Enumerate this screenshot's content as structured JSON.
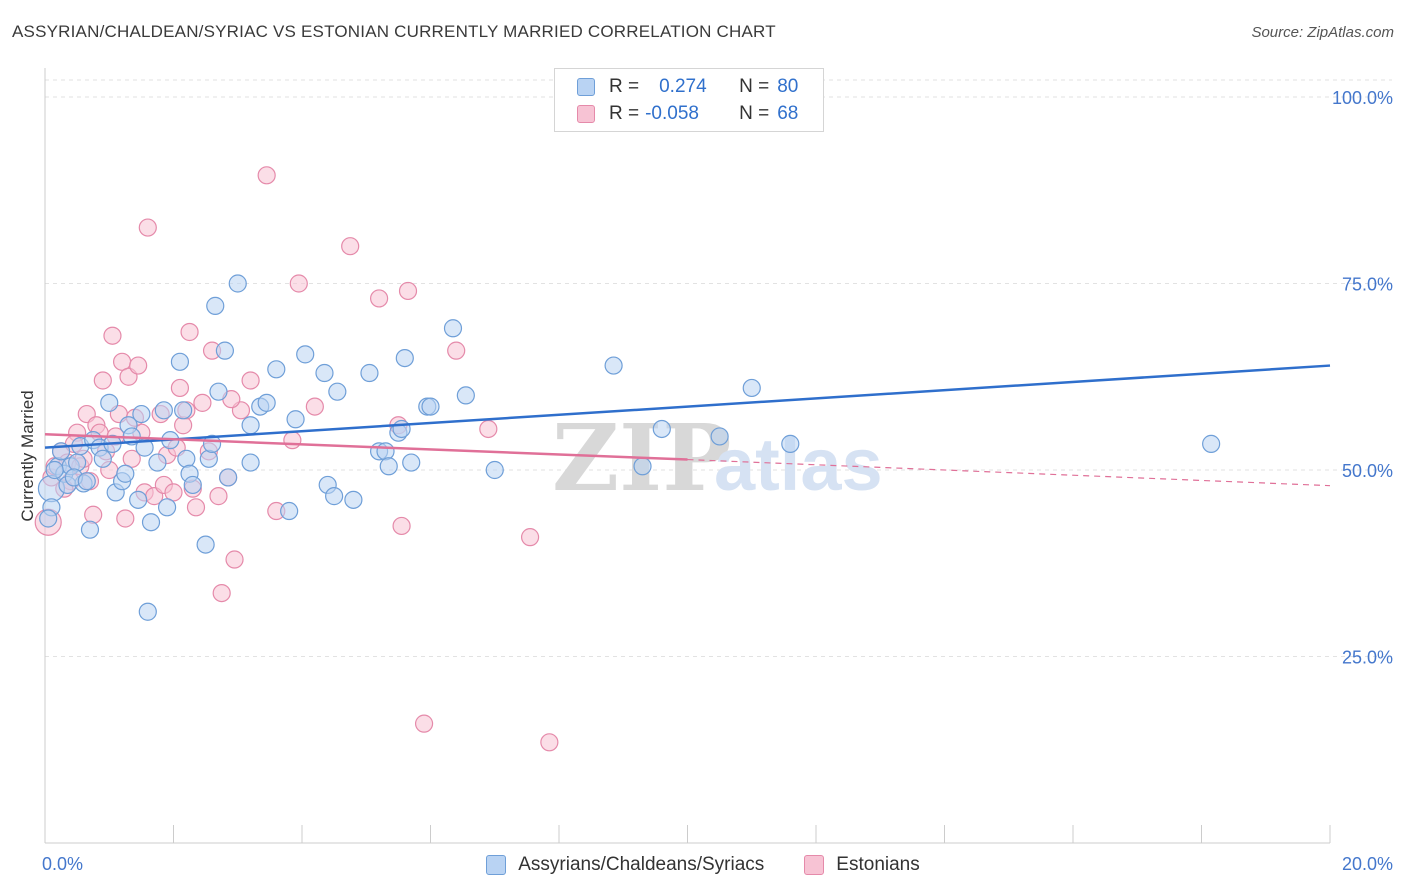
{
  "title": "ASSYRIAN/CHALDEAN/SYRIAC VS ESTONIAN CURRENTLY MARRIED CORRELATION CHART",
  "source": "Source: ZipAtlas.com",
  "watermark": {
    "zip": "ZIP",
    "atlas": "atlas"
  },
  "legend": {
    "row1": {
      "r_label": "R = ",
      "r_value": "0.274",
      "n_label": "N = ",
      "n_value": "80"
    },
    "row2": {
      "r_label": "R = ",
      "r_value": "-0.058",
      "n_label": "N = ",
      "n_value": "68"
    }
  },
  "colors": {
    "blue_fill": "#b9d3f3",
    "blue_stroke": "#6f9fd8",
    "blue_line": "#2f6fcc",
    "pink_fill": "#f7c3d4",
    "pink_stroke": "#e58aaa",
    "pink_line": "#e07098"
  },
  "chart_data": {
    "type": "scatter",
    "title": "ASSYRIAN/CHALDEAN/SYRIAC VS ESTONIAN CURRENTLY MARRIED CORRELATION CHART",
    "xlabel": "",
    "ylabel": "Currently Married",
    "xlim": [
      0,
      20
    ],
    "ylim": [
      0,
      100
    ],
    "x_tick_labels": [
      "0.0%",
      "20.0%"
    ],
    "y_tick_labels": [
      "100.0%",
      "75.0%",
      "50.0%",
      "25.0%"
    ],
    "y_ticks": [
      100,
      75,
      50,
      25
    ],
    "grid": true,
    "legend_position": "top-center",
    "series": [
      {
        "name": "Assyrians/Chaldeans/Syriacs",
        "r": 0.274,
        "n": 80,
        "trend": {
          "x": [
            0,
            20
          ],
          "y": [
            53.0,
            64.0
          ],
          "dashed_from": null
        },
        "points": [
          [
            0.1,
            47.5
          ],
          [
            0.1,
            45.0
          ],
          [
            0.2,
            50.5
          ],
          [
            0.25,
            52.5
          ],
          [
            0.3,
            49.5
          ],
          [
            0.35,
            48.0
          ],
          [
            0.4,
            50.5
          ],
          [
            0.5,
            51.0
          ],
          [
            0.55,
            53.2
          ],
          [
            0.6,
            48.2
          ],
          [
            0.7,
            42.0
          ],
          [
            0.75,
            54.0
          ],
          [
            0.85,
            53.0
          ],
          [
            0.9,
            51.5
          ],
          [
            1.0,
            59.0
          ],
          [
            1.05,
            53.5
          ],
          [
            1.1,
            47.0
          ],
          [
            1.2,
            48.5
          ],
          [
            1.25,
            49.5
          ],
          [
            1.3,
            56.0
          ],
          [
            1.35,
            54.5
          ],
          [
            1.45,
            46.0
          ],
          [
            1.5,
            57.5
          ],
          [
            1.55,
            53.0
          ],
          [
            1.6,
            31.0
          ],
          [
            1.65,
            43.0
          ],
          [
            1.75,
            51.0
          ],
          [
            1.85,
            58.0
          ],
          [
            1.9,
            45.0
          ],
          [
            1.95,
            54.0
          ],
          [
            2.1,
            64.5
          ],
          [
            2.15,
            58.0
          ],
          [
            2.2,
            51.5
          ],
          [
            2.25,
            49.5
          ],
          [
            2.3,
            48.0
          ],
          [
            2.5,
            40.0
          ],
          [
            2.55,
            51.5
          ],
          [
            2.6,
            53.5
          ],
          [
            2.65,
            72.0
          ],
          [
            2.7,
            60.5
          ],
          [
            2.8,
            66.0
          ],
          [
            2.85,
            49.0
          ],
          [
            3.0,
            75.0
          ],
          [
            3.2,
            56.0
          ],
          [
            3.2,
            51.0
          ],
          [
            3.35,
            58.5
          ],
          [
            3.45,
            59.0
          ],
          [
            3.6,
            63.5
          ],
          [
            3.8,
            44.5
          ],
          [
            3.9,
            56.8
          ],
          [
            4.05,
            65.5
          ],
          [
            4.35,
            63.0
          ],
          [
            4.4,
            48.0
          ],
          [
            4.5,
            46.5
          ],
          [
            4.55,
            60.5
          ],
          [
            4.8,
            46.0
          ],
          [
            5.05,
            63.0
          ],
          [
            5.2,
            52.5
          ],
          [
            5.3,
            52.5
          ],
          [
            5.35,
            50.5
          ],
          [
            5.5,
            55.0
          ],
          [
            5.55,
            55.5
          ],
          [
            5.6,
            65.0
          ],
          [
            5.7,
            51.0
          ],
          [
            5.95,
            58.5
          ],
          [
            6.0,
            58.5
          ],
          [
            6.35,
            69.0
          ],
          [
            6.55,
            60.0
          ],
          [
            7.0,
            50.0
          ],
          [
            8.85,
            64.0
          ],
          [
            9.3,
            50.5
          ],
          [
            9.6,
            55.5
          ],
          [
            10.5,
            54.5
          ],
          [
            11.0,
            61.0
          ],
          [
            11.6,
            53.5
          ],
          [
            18.15,
            53.5
          ],
          [
            0.05,
            43.5
          ],
          [
            0.15,
            50.0
          ],
          [
            0.45,
            49.0
          ],
          [
            0.65,
            48.5
          ]
        ]
      },
      {
        "name": "Estonians",
        "r": -0.058,
        "n": 68,
        "trend": {
          "x": [
            0,
            10.0,
            20
          ],
          "y": [
            54.8,
            51.4,
            47.9
          ],
          "dashed_from": 10.0
        },
        "points": [
          [
            0.05,
            43.0
          ],
          [
            0.1,
            49.0
          ],
          [
            0.15,
            50.5
          ],
          [
            0.25,
            52.5
          ],
          [
            0.35,
            51.0
          ],
          [
            0.4,
            48.5
          ],
          [
            0.5,
            55.0
          ],
          [
            0.55,
            50.5
          ],
          [
            0.6,
            51.5
          ],
          [
            0.65,
            57.5
          ],
          [
            0.7,
            48.5
          ],
          [
            0.8,
            56.0
          ],
          [
            0.85,
            55.0
          ],
          [
            0.9,
            62.0
          ],
          [
            0.95,
            52.5
          ],
          [
            1.0,
            50.0
          ],
          [
            1.05,
            68.0
          ],
          [
            1.1,
            54.5
          ],
          [
            1.15,
            57.5
          ],
          [
            1.2,
            64.5
          ],
          [
            1.25,
            43.5
          ],
          [
            1.3,
            62.5
          ],
          [
            1.35,
            51.5
          ],
          [
            1.45,
            64.0
          ],
          [
            1.5,
            55.0
          ],
          [
            1.55,
            47.0
          ],
          [
            1.6,
            82.5
          ],
          [
            1.7,
            46.5
          ],
          [
            1.8,
            57.5
          ],
          [
            1.85,
            48.0
          ],
          [
            1.9,
            52.0
          ],
          [
            2.0,
            47.0
          ],
          [
            2.1,
            61.0
          ],
          [
            2.15,
            56.0
          ],
          [
            2.2,
            58.0
          ],
          [
            2.25,
            68.5
          ],
          [
            2.35,
            45.0
          ],
          [
            2.45,
            59.0
          ],
          [
            2.55,
            52.5
          ],
          [
            2.6,
            66.0
          ],
          [
            2.7,
            46.5
          ],
          [
            2.75,
            33.5
          ],
          [
            2.85,
            49.0
          ],
          [
            2.95,
            38.0
          ],
          [
            3.05,
            58.0
          ],
          [
            3.2,
            62.0
          ],
          [
            3.45,
            89.5
          ],
          [
            3.6,
            44.5
          ],
          [
            3.85,
            54.0
          ],
          [
            3.95,
            75.0
          ],
          [
            4.2,
            58.5
          ],
          [
            4.75,
            80.0
          ],
          [
            5.2,
            73.0
          ],
          [
            5.5,
            56.0
          ],
          [
            5.55,
            42.5
          ],
          [
            5.65,
            74.0
          ],
          [
            5.9,
            16.0
          ],
          [
            6.4,
            66.0
          ],
          [
            6.9,
            55.5
          ],
          [
            7.55,
            41.0
          ],
          [
            7.85,
            13.5
          ],
          [
            0.3,
            47.5
          ],
          [
            0.45,
            53.5
          ],
          [
            0.75,
            44.0
          ],
          [
            2.05,
            53.0
          ],
          [
            2.3,
            47.5
          ],
          [
            2.9,
            59.5
          ],
          [
            1.4,
            57.0
          ]
        ]
      }
    ]
  }
}
